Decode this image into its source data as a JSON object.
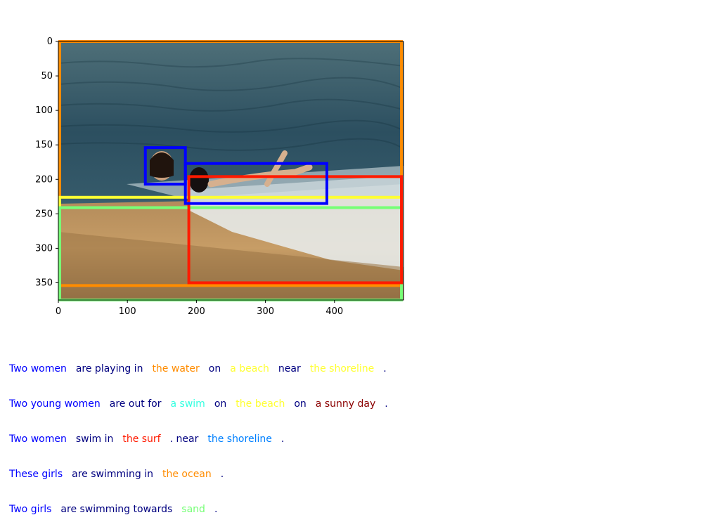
{
  "plot": {
    "x_ticks": [
      "0",
      "100",
      "200",
      "300",
      "400"
    ],
    "y_ticks": [
      "0",
      "50",
      "100",
      "150",
      "200",
      "250",
      "300",
      "350"
    ],
    "x_range": [
      0,
      500
    ],
    "y_range": [
      375,
      0
    ],
    "boxes": [
      {
        "label": "the water",
        "color": "#ff8c00",
        "x1": 2,
        "y1": 0,
        "x2": 497,
        "y2": 354
      },
      {
        "label": "the beach",
        "color": "#ffff33",
        "x1": 2,
        "y1": 226,
        "x2": 497,
        "y2": 375
      },
      {
        "label": "sand",
        "color": "#77ff77",
        "x1": 2,
        "y1": 241,
        "x2": 497,
        "y2": 375
      },
      {
        "label": "the surf",
        "color": "#ff1a00",
        "x1": 189,
        "y1": 196,
        "x2": 497,
        "y2": 350
      },
      {
        "label": "Two women A",
        "color": "#0000ff",
        "x1": 126,
        "y1": 154,
        "x2": 184,
        "y2": 207
      },
      {
        "label": "Two women B",
        "color": "#0000ff",
        "x1": 184,
        "y1": 177,
        "x2": 389,
        "y2": 235
      }
    ]
  },
  "captions": [
    [
      {
        "text": "Two women",
        "color": "#0000ff"
      },
      {
        "text": "are playing in",
        "color": "#000080"
      },
      {
        "text": "the water",
        "color": "#ff8c00"
      },
      {
        "text": "on",
        "color": "#000080"
      },
      {
        "text": "a beach",
        "color": "#ffff33"
      },
      {
        "text": "near",
        "color": "#000080"
      },
      {
        "text": "the shoreline",
        "color": "#ffff33"
      },
      {
        "text": ".",
        "color": "#000080"
      }
    ],
    [
      {
        "text": "Two young women",
        "color": "#0000ff"
      },
      {
        "text": "are out for",
        "color": "#000080"
      },
      {
        "text": "a swim",
        "color": "#33ffe0"
      },
      {
        "text": "on",
        "color": "#000080"
      },
      {
        "text": "the beach",
        "color": "#ffff33"
      },
      {
        "text": "on",
        "color": "#000080"
      },
      {
        "text": "a sunny day",
        "color": "#8b0000"
      },
      {
        "text": ".",
        "color": "#000080"
      }
    ],
    [
      {
        "text": "Two women",
        "color": "#0000ff"
      },
      {
        "text": "swim in",
        "color": "#000080"
      },
      {
        "text": "the surf",
        "color": "#ff1a00"
      },
      {
        "text": ". near",
        "color": "#000080"
      },
      {
        "text": "the shoreline",
        "color": "#0080ff"
      },
      {
        "text": ".",
        "color": "#000080"
      }
    ],
    [
      {
        "text": "These girls",
        "color": "#0000ff"
      },
      {
        "text": "are swimming in",
        "color": "#000080"
      },
      {
        "text": "the ocean",
        "color": "#ff8c00"
      },
      {
        "text": ".",
        "color": "#000080"
      }
    ],
    [
      {
        "text": "Two girls",
        "color": "#0000ff"
      },
      {
        "text": "are swimming towards",
        "color": "#000080"
      },
      {
        "text": "sand",
        "color": "#77ff77"
      },
      {
        "text": ".",
        "color": "#000080"
      }
    ]
  ]
}
